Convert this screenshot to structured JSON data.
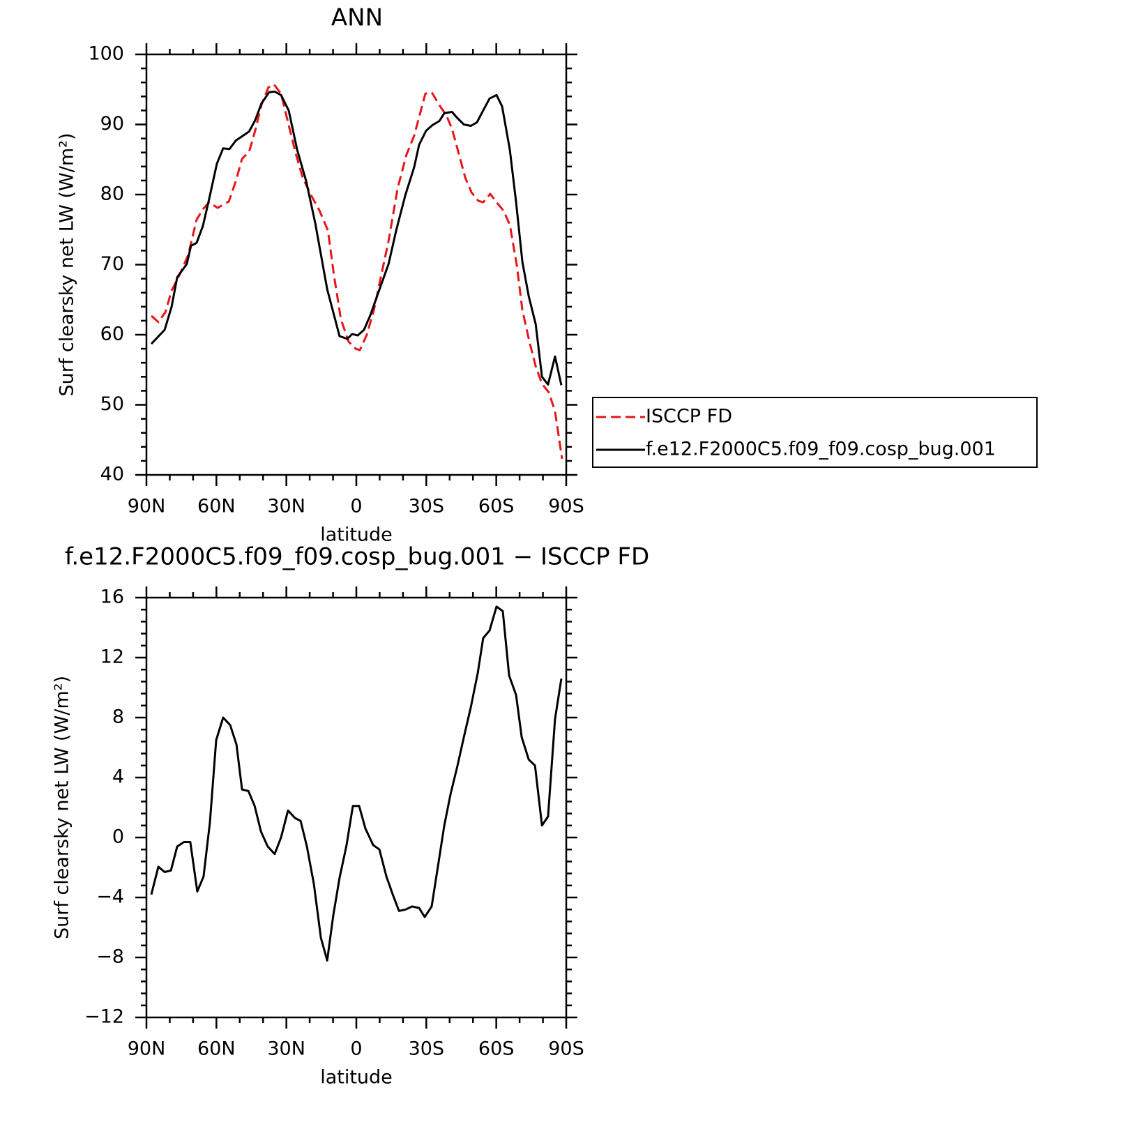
{
  "chart_data": [
    {
      "type": "line",
      "title": "ANN",
      "xlabel": "latitude",
      "ylabel": "Surf clearsky net LW (W/m²)",
      "xlim": [
        90,
        -90
      ],
      "xticks": [
        {
          "value": 90,
          "label": "90N"
        },
        {
          "value": 60,
          "label": "60N"
        },
        {
          "value": 30,
          "label": "30N"
        },
        0,
        {
          "value": -30,
          "label": "30S"
        },
        {
          "value": -60,
          "label": "60S"
        },
        {
          "value": -90,
          "label": "90S"
        }
      ],
      "ylim": [
        40,
        100
      ],
      "yticks": [
        40,
        50,
        60,
        70,
        80,
        90,
        100
      ],
      "legend": "right",
      "series": [
        {
          "name": "ISCCP FD",
          "color": "#e8141a",
          "dash": "dashed",
          "x": [
            87.9,
            84.9,
            81.9,
            79.2,
            75.6,
            72.1,
            68.5,
            65.8,
            63.1,
            59.5,
            54.7,
            51.7,
            49.0,
            46.0,
            43.4,
            40.7,
            37.7,
            35.3,
            32.3,
            29.0,
            26.0,
            23.0,
            19.4,
            15.8,
            12.2,
            9.6,
            6.6,
            3.3,
            0.3,
            -1.5,
            -4.5,
            -7.5,
            -10.5,
            -13.8,
            -17.7,
            -21.5,
            -24.8,
            -29.6,
            -32.3,
            -35.9,
            -38.6,
            -41.0,
            -43.7,
            -46.7,
            -49.4,
            -52.3,
            -54.4,
            -57.4,
            -60.1,
            -63.1,
            -65.8,
            -68.8,
            -71.2,
            -74.2,
            -76.9,
            -79.6,
            -82.5,
            -85.2,
            -88.2
          ],
          "values": [
            62.7,
            61.8,
            63.2,
            66.3,
            68.7,
            71.4,
            76.4,
            77.9,
            78.9,
            78.1,
            79.0,
            81.9,
            85.1,
            86.1,
            89.1,
            92.8,
            95.3,
            95.7,
            94.4,
            89.9,
            85.9,
            82.4,
            79.9,
            77.7,
            74.9,
            68.5,
            62.2,
            59.0,
            58.0,
            57.8,
            60.0,
            63.5,
            68.2,
            73.4,
            80.9,
            85.7,
            88.4,
            94.4,
            94.6,
            92.6,
            91.3,
            89.4,
            86.1,
            82.4,
            80.3,
            79.1,
            78.9,
            80.1,
            78.9,
            77.7,
            75.7,
            69.9,
            63.5,
            59.0,
            55.5,
            53.0,
            51.8,
            49.1,
            42.3
          ]
        },
        {
          "name": "f.e12.F2000C5.f09_f09.cosp_bug.001",
          "color": "#000000",
          "dash": "solid",
          "x": [
            87.9,
            82.2,
            79.2,
            76.8,
            72.7,
            70.9,
            68.5,
            65.8,
            63.1,
            59.8,
            57.1,
            54.4,
            51.7,
            46.0,
            43.4,
            40.7,
            37.4,
            35.0,
            32.3,
            29.0,
            25.4,
            21.5,
            17.6,
            12.5,
            7.2,
            3.9,
            1.8,
            -0.6,
            -3.3,
            -6.0,
            -10.5,
            -13.8,
            -17.1,
            -21.0,
            -24.8,
            -26.9,
            -29.9,
            -32.6,
            -35.6,
            -37.7,
            -41.0,
            -43.1,
            -46.1,
            -49.1,
            -51.7,
            -54.4,
            -57.1,
            -60.1,
            -62.5,
            -65.8,
            -68.5,
            -71.2,
            -73.9,
            -76.9,
            -79.6,
            -82.2,
            -85.2,
            -87.9
          ],
          "values": [
            58.7,
            60.7,
            64.0,
            68.2,
            70.1,
            72.7,
            73.1,
            75.5,
            79.4,
            84.4,
            86.6,
            86.5,
            87.7,
            89.0,
            90.6,
            93.0,
            94.6,
            94.7,
            94.2,
            92.0,
            86.4,
            81.9,
            75.9,
            66.5,
            59.8,
            59.4,
            60.1,
            59.9,
            60.7,
            62.8,
            67.0,
            70.1,
            74.9,
            79.9,
            83.9,
            87.1,
            89.1,
            89.9,
            90.5,
            91.6,
            91.8,
            91.0,
            90.0,
            89.8,
            90.3,
            92.0,
            93.7,
            94.2,
            92.6,
            86.4,
            78.9,
            70.4,
            65.5,
            61.5,
            54.0,
            52.9,
            56.9,
            52.8
          ]
        }
      ]
    },
    {
      "type": "line",
      "title": "f.e12.F2000C5.f09_f09.cosp_bug.001 − ISCCP FD",
      "xlabel": "latitude",
      "ylabel": "Surf clearsky net LW (W/m²)",
      "xlim": [
        90,
        -90
      ],
      "xticks": [
        {
          "value": 90,
          "label": "90N"
        },
        {
          "value": 60,
          "label": "60N"
        },
        {
          "value": 30,
          "label": "30N"
        },
        0,
        {
          "value": -30,
          "label": "30S"
        },
        {
          "value": -60,
          "label": "60S"
        },
        {
          "value": -90,
          "label": "90S"
        }
      ],
      "ylim": [
        -12,
        16
      ],
      "yticks": [
        {
          "value": -12,
          "label": "−12"
        },
        {
          "value": -8,
          "label": "−8"
        },
        {
          "value": -4,
          "label": "−4"
        },
        0,
        4,
        8,
        12,
        16
      ],
      "series": [
        {
          "color": "#000000",
          "dash": "solid",
          "x": [
            87.9,
            84.9,
            82.2,
            79.5,
            76.8,
            73.9,
            71.2,
            68.2,
            65.5,
            62.8,
            60.1,
            57.1,
            54.1,
            51.4,
            49.0,
            46.3,
            43.6,
            40.9,
            38.0,
            35.0,
            32.3,
            29.3,
            26.3,
            23.9,
            21.2,
            18.2,
            15.2,
            12.5,
            9.9,
            7.2,
            4.2,
            1.5,
            -1.2,
            -3.9,
            -7.2,
            -9.9,
            -12.9,
            -15.6,
            -18.3,
            -21.2,
            -23.9,
            -26.9,
            -29.3,
            -32.3,
            -35.3,
            -37.7,
            -40.4,
            -43.4,
            -46.1,
            -49.1,
            -52.1,
            -54.4,
            -57.1,
            -60.1,
            -62.8,
            -65.5,
            -68.5,
            -70.9,
            -73.9,
            -76.6,
            -79.6,
            -82.2,
            -85.2,
            -87.9
          ],
          "values": [
            -3.8,
            -1.95,
            -2.3,
            -2.2,
            -0.6,
            -0.3,
            -0.3,
            -3.6,
            -2.6,
            1.0,
            6.5,
            8.0,
            7.5,
            6.2,
            3.2,
            3.1,
            2.1,
            0.4,
            -0.6,
            -1.1,
            0.0,
            1.8,
            1.3,
            1.1,
            -0.6,
            -3.1,
            -6.7,
            -8.2,
            -5.2,
            -2.7,
            -0.5,
            2.1,
            2.1,
            0.6,
            -0.5,
            -0.8,
            -2.6,
            -3.8,
            -4.9,
            -4.8,
            -4.6,
            -4.7,
            -5.3,
            -4.6,
            -1.6,
            0.8,
            2.9,
            4.8,
            6.7,
            8.7,
            11.0,
            13.3,
            13.8,
            15.4,
            15.1,
            10.8,
            9.5,
            6.7,
            5.2,
            4.8,
            0.8,
            1.4,
            7.9,
            10.6
          ]
        }
      ]
    }
  ]
}
